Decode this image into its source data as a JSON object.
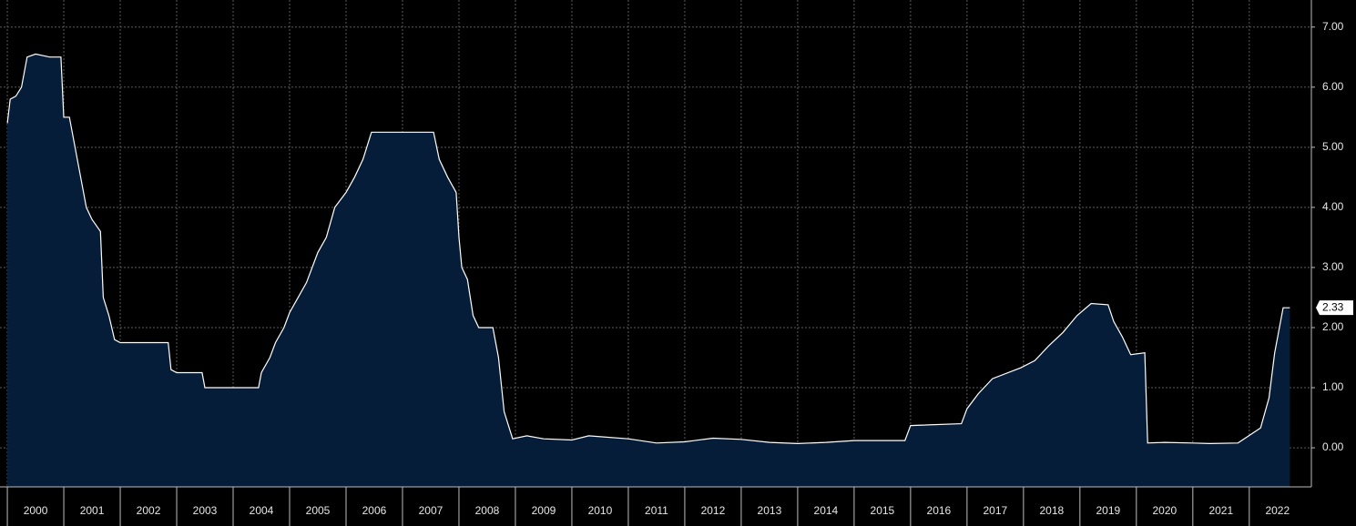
{
  "chart_data": {
    "type": "area",
    "x": [
      2000.0,
      2000.05,
      2000.15,
      2000.25,
      2000.35,
      2000.5,
      2000.75,
      2000.95,
      2001.0,
      2001.1,
      2001.2,
      2001.3,
      2001.4,
      2001.5,
      2001.65,
      2001.7,
      2001.8,
      2001.9,
      2002.0,
      2002.5,
      2002.85,
      2002.9,
      2003.0,
      2003.45,
      2003.5,
      2004.0,
      2004.45,
      2004.5,
      2004.65,
      2004.75,
      2004.9,
      2005.0,
      2005.15,
      2005.3,
      2005.5,
      2005.65,
      2005.8,
      2006.0,
      2006.15,
      2006.3,
      2006.45,
      2006.7,
      2007.0,
      2007.55,
      2007.65,
      2007.8,
      2007.95,
      2008.0,
      2008.05,
      2008.15,
      2008.25,
      2008.35,
      2008.6,
      2008.7,
      2008.8,
      2008.95,
      2009.2,
      2009.5,
      2010.0,
      2010.3,
      2011.0,
      2011.5,
      2012.0,
      2012.5,
      2013.0,
      2013.5,
      2014.0,
      2014.5,
      2015.0,
      2015.9,
      2016.0,
      2016.9,
      2017.0,
      2017.2,
      2017.45,
      2017.95,
      2018.2,
      2018.45,
      2018.7,
      2018.95,
      2019.2,
      2019.5,
      2019.6,
      2019.75,
      2019.9,
      2020.15,
      2020.2,
      2020.5,
      2021.0,
      2021.3,
      2021.8,
      2022.2,
      2022.35,
      2022.45,
      2022.6,
      2022.72
    ],
    "values": [
      5.4,
      5.8,
      5.85,
      6.0,
      6.5,
      6.55,
      6.5,
      6.5,
      5.5,
      5.5,
      5.0,
      4.5,
      4.0,
      3.8,
      3.6,
      2.5,
      2.2,
      1.8,
      1.75,
      1.75,
      1.75,
      1.3,
      1.25,
      1.25,
      1.0,
      1.0,
      1.0,
      1.25,
      1.5,
      1.75,
      2.0,
      2.25,
      2.5,
      2.75,
      3.25,
      3.5,
      4.0,
      4.25,
      4.5,
      4.8,
      5.25,
      5.25,
      5.25,
      5.25,
      4.8,
      4.5,
      4.25,
      3.5,
      3.0,
      2.8,
      2.2,
      2.0,
      2.0,
      1.5,
      0.6,
      0.15,
      0.2,
      0.15,
      0.13,
      0.2,
      0.15,
      0.08,
      0.1,
      0.16,
      0.14,
      0.09,
      0.07,
      0.09,
      0.12,
      0.12,
      0.37,
      0.4,
      0.65,
      0.9,
      1.15,
      1.33,
      1.45,
      1.7,
      1.92,
      2.2,
      2.4,
      2.38,
      2.1,
      1.85,
      1.55,
      1.58,
      0.08,
      0.09,
      0.08,
      0.07,
      0.08,
      0.33,
      0.83,
      1.58,
      2.33,
      2.33
    ],
    "line_color": "#ffffff",
    "fill_color": "#061d3a",
    "xlim": [
      1999.87,
      2023.1
    ],
    "xticks": [
      2000,
      2001,
      2002,
      2003,
      2004,
      2005,
      2006,
      2007,
      2008,
      2009,
      2010,
      2011,
      2012,
      2013,
      2014,
      2015,
      2016,
      2017,
      2018,
      2019,
      2020,
      2021,
      2022
    ],
    "ylim": [
      -0.65,
      7.45
    ],
    "yticks": [
      {
        "value": 0,
        "label": "0.00"
      },
      {
        "value": 1,
        "label": "1.00"
      },
      {
        "value": 2,
        "label": "2.00"
      },
      {
        "value": 3,
        "label": "3.00"
      },
      {
        "value": 4,
        "label": "4.00"
      },
      {
        "value": 5,
        "label": "5.00"
      },
      {
        "value": 6,
        "label": "6.00"
      },
      {
        "value": 7,
        "label": "7.00"
      }
    ],
    "grid": true
  }
}
